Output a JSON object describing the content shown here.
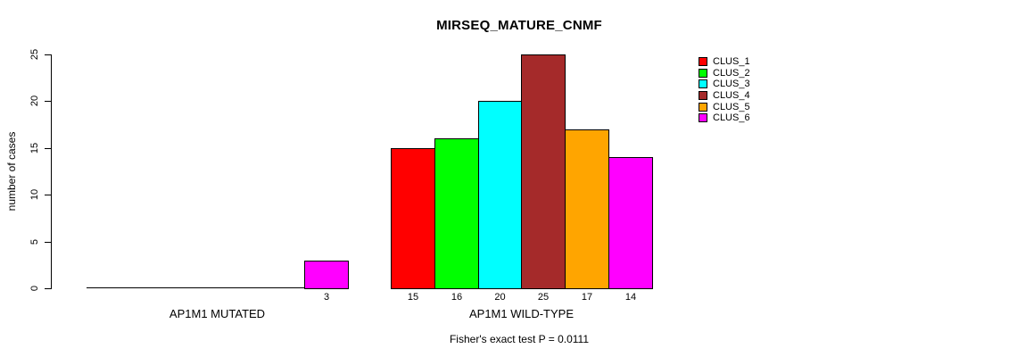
{
  "chart_data": {
    "type": "bar",
    "title": "MIRSEQ_MATURE_CNMF",
    "ylabel": "number of cases",
    "xlabel": "",
    "footnote": "Fisher's exact test P = 0.0111",
    "ylim": [
      0,
      25
    ],
    "yticks": [
      0,
      5,
      10,
      15,
      20,
      25
    ],
    "grid": false,
    "legend_position": "right-outside",
    "bar_value_labels_below_axis": true,
    "series": [
      {
        "name": "CLUS_1",
        "color": "#FF0000"
      },
      {
        "name": "CLUS_2",
        "color": "#00FF00"
      },
      {
        "name": "CLUS_3",
        "color": "#00FFFF"
      },
      {
        "name": "CLUS_4",
        "color": "#A52A2A"
      },
      {
        "name": "CLUS_5",
        "color": "#FFA500"
      },
      {
        "name": "CLUS_6",
        "color": "#FF00FF"
      }
    ],
    "categories": [
      "AP1M1 MUTATED",
      "AP1M1 WILD-TYPE"
    ],
    "groups": [
      {
        "label": "AP1M1 MUTATED",
        "values": [
          0,
          0,
          0,
          0,
          0,
          3
        ]
      },
      {
        "label": "AP1M1 WILD-TYPE",
        "values": [
          15,
          16,
          20,
          25,
          17,
          14
        ]
      }
    ]
  }
}
